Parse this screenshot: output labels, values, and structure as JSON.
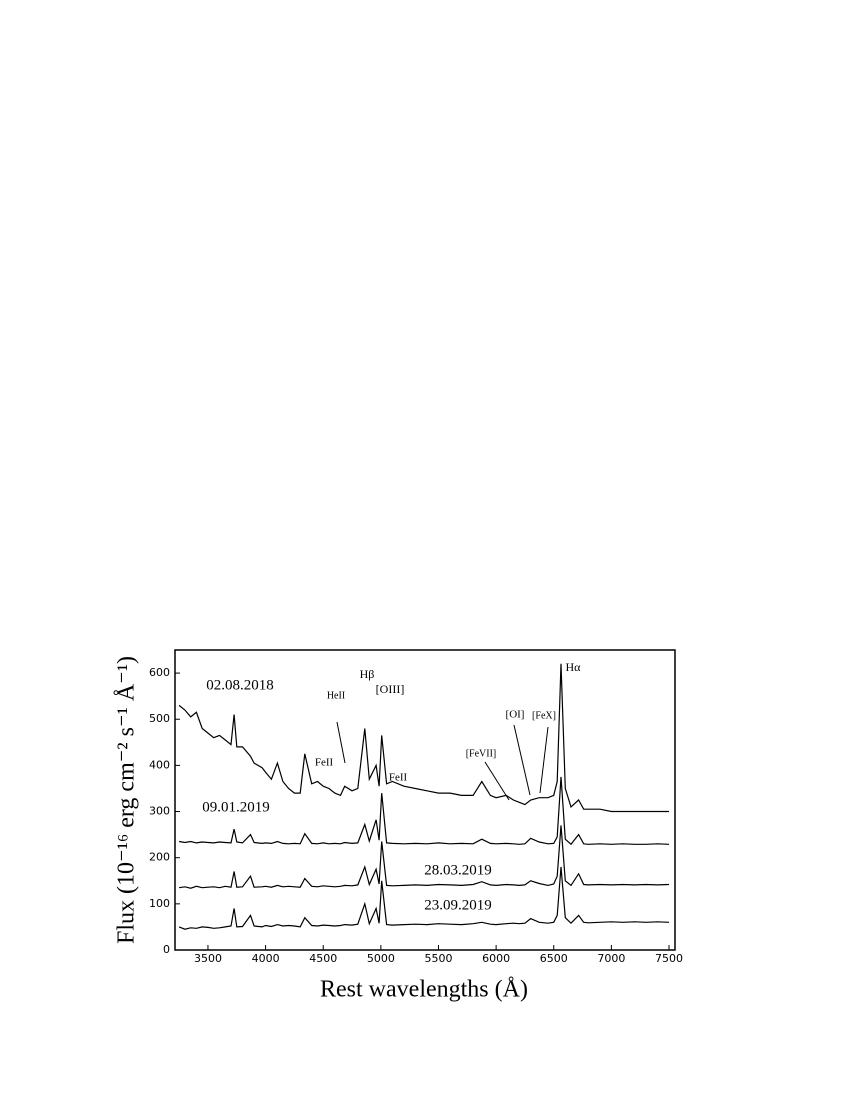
{
  "chart_data": {
    "type": "line",
    "xlabel": "Rest wavelengths (Å)",
    "ylabel": "Flux (10⁻¹⁶ erg cm⁻² s⁻¹ Å⁻¹)",
    "xlim": [
      3214,
      7552
    ],
    "ylim": [
      0,
      650
    ],
    "xticks": [
      3500,
      4000,
      4500,
      5000,
      5500,
      6000,
      6500,
      7000,
      7500
    ],
    "yticks": [
      0,
      100,
      200,
      300,
      400,
      500,
      600
    ],
    "x": [
      3250,
      3300,
      3350,
      3400,
      3450,
      3500,
      3550,
      3600,
      3650,
      3700,
      3727,
      3750,
      3800,
      3869,
      3900,
      3970,
      4000,
      4050,
      4102,
      4150,
      4200,
      4250,
      4300,
      4340,
      4400,
      4450,
      4500,
      4550,
      4600,
      4650,
      4686,
      4750,
      4800,
      4861,
      4900,
      4959,
      4985,
      5007,
      5050,
      5100,
      5200,
      5300,
      5400,
      5500,
      5600,
      5700,
      5800,
      5876,
      5950,
      6000,
      6087,
      6150,
      6200,
      6250,
      6300,
      6374,
      6450,
      6500,
      6530,
      6563,
      6600,
      6650,
      6716,
      6760,
      6800,
      6900,
      7000,
      7100,
      7200,
      7300,
      7400,
      7500
    ],
    "series": [
      {
        "name": "02.08.2018",
        "color": "#000000",
        "values": [
          530,
          520,
          505,
          515,
          480,
          470,
          460,
          465,
          455,
          445,
          510,
          440,
          440,
          420,
          405,
          395,
          385,
          370,
          405,
          365,
          350,
          340,
          340,
          425,
          360,
          365,
          355,
          350,
          340,
          335,
          355,
          345,
          350,
          480,
          370,
          400,
          355,
          465,
          360,
          365,
          355,
          350,
          345,
          340,
          340,
          335,
          335,
          365,
          335,
          330,
          335,
          325,
          320,
          315,
          325,
          330,
          330,
          335,
          365,
          620,
          350,
          310,
          325,
          305,
          305,
          305,
          300,
          300,
          300,
          300,
          300,
          300
        ]
      },
      {
        "name": "09.01.2019",
        "color": "#000000",
        "values": [
          235,
          233,
          235,
          232,
          234,
          233,
          232,
          234,
          233,
          232,
          262,
          234,
          232,
          250,
          233,
          231,
          232,
          231,
          235,
          231,
          230,
          231,
          230,
          252,
          231,
          230,
          232,
          230,
          231,
          230,
          233,
          231,
          232,
          272,
          236,
          282,
          238,
          340,
          232,
          231,
          230,
          231,
          230,
          232,
          230,
          231,
          230,
          240,
          231,
          230,
          231,
          230,
          229,
          230,
          242,
          234,
          230,
          231,
          245,
          375,
          240,
          229,
          250,
          230,
          229,
          230,
          229,
          230,
          229,
          229,
          230,
          229
        ]
      },
      {
        "name": "28.03.2019",
        "color": "#000000",
        "values": [
          135,
          137,
          134,
          138,
          135,
          136,
          137,
          135,
          138,
          136,
          170,
          136,
          137,
          160,
          136,
          137,
          138,
          136,
          140,
          137,
          138,
          137,
          136,
          155,
          138,
          137,
          139,
          138,
          137,
          138,
          140,
          139,
          141,
          180,
          142,
          175,
          143,
          235,
          140,
          139,
          140,
          141,
          140,
          142,
          141,
          140,
          142,
          148,
          141,
          140,
          142,
          141,
          140,
          141,
          150,
          144,
          140,
          143,
          160,
          270,
          150,
          140,
          165,
          142,
          141,
          142,
          141,
          142,
          141,
          142,
          141,
          142
        ]
      },
      {
        "name": "23.09.2019",
        "color": "#000000",
        "values": [
          50,
          45,
          48,
          47,
          50,
          49,
          47,
          48,
          50,
          52,
          90,
          50,
          51,
          75,
          52,
          50,
          53,
          51,
          55,
          52,
          53,
          52,
          50,
          70,
          53,
          52,
          54,
          53,
          52,
          53,
          55,
          54,
          56,
          100,
          57,
          90,
          58,
          150,
          55,
          54,
          55,
          56,
          55,
          57,
          56,
          55,
          57,
          60,
          56,
          55,
          57,
          58,
          57,
          58,
          68,
          60,
          58,
          60,
          75,
          180,
          70,
          58,
          75,
          60,
          59,
          60,
          61,
          60,
          61,
          60,
          61,
          60
        ]
      }
    ],
    "annotations": [
      "HeII",
      "Hβ",
      "[OIII]",
      "FeII",
      "FeII",
      "[FeVII]",
      "[OI]",
      "[FeX]",
      "Hα"
    ]
  }
}
